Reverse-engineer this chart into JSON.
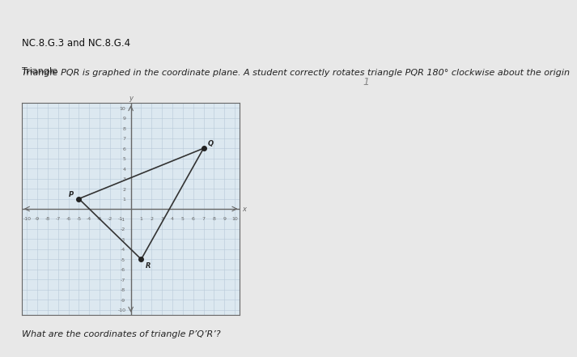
{
  "title_line1": "NC.8.G.3 and NC.8.G.4",
  "title_line2": "Triangle PQR is graphed in the coordinate plane. A student correctly rotates triangle PQR 180° clockwise about the origin",
  "title_line3": "What are the coordinates of triangle P’Q’R’?",
  "triangle_PQR": {
    "P": [
      -5,
      1
    ],
    "Q": [
      7,
      6
    ],
    "R": [
      1,
      -5
    ]
  },
  "xlim": [
    -10,
    10
  ],
  "ylim": [
    -10,
    10
  ],
  "axis_color": "#666666",
  "grid_color": "#b8c8d8",
  "grid_major_color": "#8899aa",
  "triangle_color": "#333333",
  "point_color": "#222222",
  "label_color": "#222222",
  "background_color": "#e8e8e8",
  "header_color": "#cccccc",
  "panel_color": "#dce8f0",
  "title_color": "#111111",
  "text_color": "#222222",
  "graph_border_color": "#666666"
}
